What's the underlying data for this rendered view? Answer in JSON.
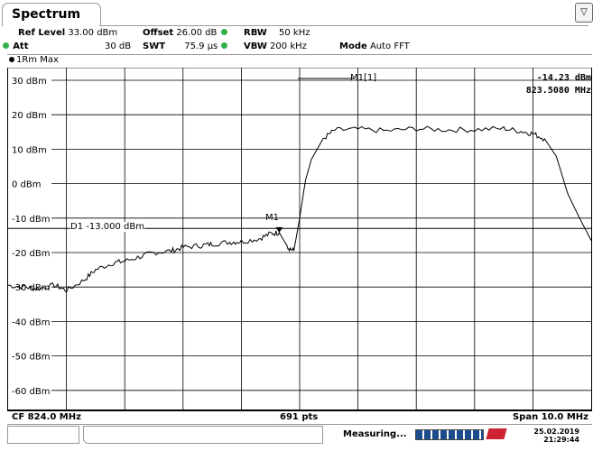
{
  "tab": {
    "label": "Spectrum"
  },
  "settings": {
    "ref_level_label": "Ref Level",
    "ref_level_value": "33.00 dBm",
    "offset_label": "Offset",
    "offset_value": "26.00 dB",
    "rbw_label": "RBW",
    "rbw_value": "50 kHz",
    "att_label": "Att",
    "att_value": "30 dB",
    "swt_label": "SWT",
    "swt_value": "75.9 µs",
    "vbw_label": "VBW",
    "vbw_value": "200 kHz",
    "mode_label": "Mode",
    "mode_value": "Auto FFT"
  },
  "window": {
    "title": "1Rm Max"
  },
  "marker": {
    "name": "M1[1]",
    "trace_label": "M1",
    "level": "-14.23 dBm",
    "frequency": "823.5080 MHz"
  },
  "display_line": {
    "label": "D1  -13.000 dBm",
    "value": -13.0
  },
  "footer": {
    "center": "CF 824.0 MHz",
    "points": "691 pts",
    "span": "Span 10.0 MHz"
  },
  "status": {
    "message": "Measuring...",
    "date": "25.02.2019",
    "time": "21:29:44"
  },
  "colors": {
    "status_dot": "#2fb04a",
    "logo": "#cc2233",
    "progress": "#1a4e8c"
  },
  "chart_data": {
    "type": "line",
    "y_ticks": [
      "30 dBm",
      "20 dBm",
      "10 dBm",
      "0 dBm",
      "-10 dBm",
      "-20 dBm",
      "-30 dBm",
      "-40 dBm",
      "-50 dBm",
      "-60 dBm"
    ],
    "ylim": [
      -70,
      30
    ],
    "xlim": [
      819.0,
      829.0
    ],
    "grid": true,
    "series": [
      {
        "x": [
          819.0,
          819.3,
          819.5,
          819.8,
          820.0,
          820.3,
          820.5,
          820.8,
          821.0,
          821.3,
          821.5,
          821.8,
          822.0,
          822.3,
          822.5,
          822.8,
          823.0,
          823.3,
          823.5,
          823.65,
          823.8,
          823.9,
          824.0,
          824.1,
          824.2,
          824.4,
          824.6,
          825.0,
          825.5,
          826.0,
          826.5,
          827.0,
          827.5,
          827.8,
          828.0,
          828.2,
          828.4,
          828.6,
          828.8,
          829.0
        ],
        "y": [
          -29.5,
          -30.0,
          -30.5,
          -29.5,
          -31.0,
          -28.0,
          -25.0,
          -23.0,
          -22.5,
          -21.0,
          -20.0,
          -19.5,
          -18.5,
          -18.0,
          -17.5,
          -17.0,
          -16.8,
          -16.0,
          -14.5,
          -14.2,
          -18.5,
          -19.5,
          -10.0,
          1.0,
          7.0,
          13.0,
          15.5,
          15.8,
          15.3,
          16.0,
          15.6,
          15.7,
          16.0,
          15.2,
          14.5,
          13.0,
          8.0,
          -3.0,
          -10.0,
          -16.5
        ]
      }
    ]
  }
}
